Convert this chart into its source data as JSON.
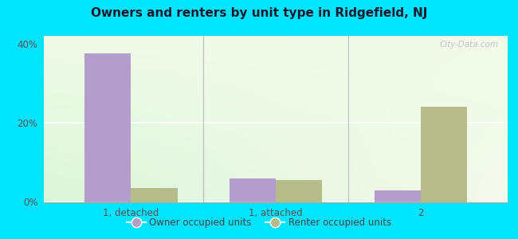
{
  "title": "Owners and renters by unit type in Ridgefield, NJ",
  "categories": [
    "1, detached",
    "1, attached",
    "2"
  ],
  "owner_values": [
    37.5,
    6.0,
    3.0
  ],
  "renter_values": [
    3.5,
    5.5,
    24.0
  ],
  "owner_color": "#b39dca",
  "renter_color": "#b5bc8a",
  "ylim": [
    0,
    42
  ],
  "yticks": [
    0,
    20,
    40
  ],
  "ytick_labels": [
    "0%",
    "20%",
    "40%"
  ],
  "outer_background": "#00e5ff",
  "bar_width": 0.32,
  "legend_owner": "Owner occupied units",
  "legend_renter": "Renter occupied units",
  "watermark": "City-Data.com",
  "grad_color_topleft": "#e8f5e8",
  "grad_color_topright": "#f5f8ee",
  "grad_color_bottomleft": "#d0e8d0",
  "grad_color_bottomright": "#eef5e0"
}
